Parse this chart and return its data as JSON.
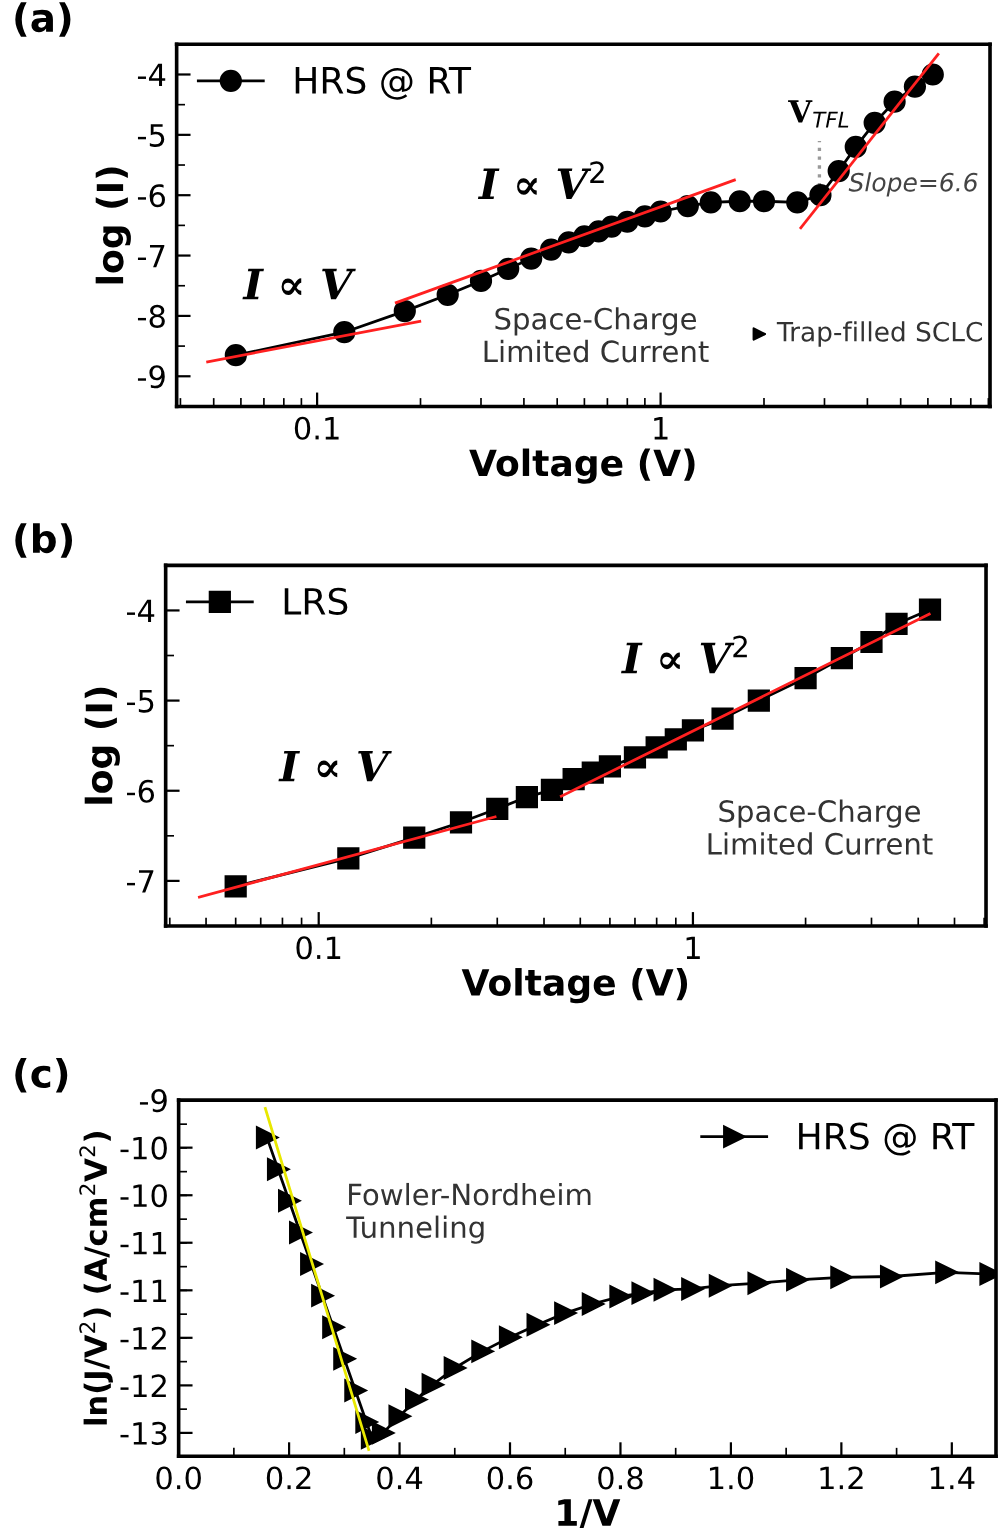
{
  "chart_data": [
    {
      "type": "line",
      "title": "(a)",
      "xlabel": "Voltage (V)",
      "ylabel": "log (I)",
      "log": "x",
      "grid": false,
      "legend": "top left",
      "xlim": [
        0.039,
        9.1
      ],
      "xticks": [
        0.1,
        1
      ],
      "ylim": [
        -9.5,
        -3.5
      ],
      "yticks": [
        -9,
        -8,
        -7,
        -6,
        -5,
        -4
      ],
      "series": [
        {
          "name": "HRS @ RT",
          "color": "#000000",
          "marker": "circle",
          "line_style": "solid",
          "x": [
            0.058,
            0.12,
            0.18,
            0.24,
            0.3,
            0.36,
            0.42,
            0.48,
            0.54,
            0.6,
            0.66,
            0.72,
            0.8,
            0.9,
            1.0,
            1.2,
            1.4,
            1.7,
            2.0,
            2.5,
            2.92,
            3.3,
            3.7,
            4.2,
            4.8,
            5.5,
            6.2
          ],
          "values": [
            -8.65,
            -8.27,
            -7.92,
            -7.65,
            -7.42,
            -7.22,
            -7.05,
            -6.9,
            -6.78,
            -6.68,
            -6.6,
            -6.52,
            -6.44,
            -6.35,
            -6.27,
            -6.18,
            -6.12,
            -6.1,
            -6.1,
            -6.12,
            -6.0,
            -5.6,
            -5.2,
            -4.8,
            -4.45,
            -4.2,
            -4.0
          ]
        },
        {
          "type": "line",
          "color": "#ff2020",
          "marker": "none",
          "line_style": "solid",
          "x": [
            0.048,
            0.199
          ],
          "values": [
            -8.76,
            -8.09
          ]
        },
        {
          "type": "line",
          "color": "#ff2020",
          "marker": "none",
          "line_style": "solid",
          "x": [
            0.17,
            1.64
          ],
          "values": [
            -7.78,
            -5.75
          ]
        },
        {
          "type": "line",
          "color": "#ff2020",
          "marker": "none",
          "line_style": "solid",
          "x": [
            2.56,
            6.42
          ],
          "values": [
            -6.54,
            -3.67
          ]
        }
      ],
      "ref_lines": [
        {
          "axis": "x",
          "value": 2.9,
          "label": "V$_{TFL}$",
          "color": "#999999",
          "line_style": "dotted"
        }
      ],
      "annotations": [
        "I ∝ V",
        "I ∝ V$^{2}$",
        "Slope=6.6",
        "Space-Charge\nLimited Current",
        "Trap-filled SCLC"
      ]
    },
    {
      "type": "line",
      "title": "(b)",
      "xlabel": "Voltage (V)",
      "ylabel": "log (I)",
      "log": "x",
      "grid": false,
      "legend": "top left",
      "xlim": [
        0.039,
        6.07
      ],
      "xticks": [
        0.1,
        1
      ],
      "ylim": [
        -7.5,
        -3.5
      ],
      "yticks": [
        -7,
        -6,
        -5,
        -4
      ],
      "series": [
        {
          "name": "LRS",
          "color": "#000000",
          "marker": "square",
          "line_style": "solid",
          "x": [
            0.06,
            0.12,
            0.18,
            0.24,
            0.3,
            0.36,
            0.42,
            0.48,
            0.54,
            0.6,
            0.7,
            0.8,
            0.9,
            1.0,
            1.2,
            1.5,
            2.0,
            2.5,
            3.0,
            3.5,
            4.3
          ],
          "values": [
            -7.06,
            -6.75,
            -6.52,
            -6.35,
            -6.2,
            -6.07,
            -5.99,
            -5.87,
            -5.8,
            -5.73,
            -5.63,
            -5.52,
            -5.43,
            -5.33,
            -5.2,
            -5.0,
            -4.75,
            -4.53,
            -4.35,
            -4.15,
            -3.99
          ]
        },
        {
          "type": "line",
          "color": "#ff2020",
          "marker": "none",
          "line_style": "solid",
          "x": [
            0.048,
            0.296
          ],
          "values": [
            -7.18,
            -6.29
          ]
        },
        {
          "type": "line",
          "color": "#ff2020",
          "marker": "none",
          "line_style": "solid",
          "x": [
            0.445,
            4.28
          ],
          "values": [
            -6.06,
            -4.04
          ]
        }
      ],
      "annotations": [
        "I ∝ V",
        "I ∝ V$^{2}$",
        "Space-Charge\nLimited Current"
      ]
    },
    {
      "type": "line",
      "title": "(c)",
      "xlabel": "1/V",
      "ylabel": "ln(J/V$^{2}$) (A/cm$^{2}$V$^{2}$)",
      "grid": false,
      "legend": "top right",
      "xlim": [
        0,
        1.48
      ],
      "xticks": [
        {
          "value": 0,
          "label": "0.0"
        },
        0.2,
        0.4,
        0.6,
        0.8,
        {
          "value": 1,
          "label": "1.0"
        },
        1.2,
        1.4
      ],
      "ylim": [
        -13.28,
        -9
      ],
      "yticks": [
        -9,
        {
          "value": -9.571,
          "label": "-10"
        },
        {
          "value": -10.143,
          "label": "-10"
        },
        {
          "value": -10.714,
          "label": "-11"
        },
        {
          "value": -11.286,
          "label": "-11"
        },
        {
          "value": -11.857,
          "label": "-12"
        },
        {
          "value": -12.429,
          "label": "-12"
        },
        -13
      ],
      "series": [
        {
          "name": "HRS @ RT",
          "color": "#000000",
          "marker": "triangle",
          "line_style": "solid",
          "x": [
            0.16,
            0.18,
            0.2,
            0.22,
            0.24,
            0.26,
            0.28,
            0.3,
            0.32,
            0.34,
            0.35,
            0.37,
            0.4,
            0.43,
            0.46,
            0.5,
            0.55,
            0.6,
            0.65,
            0.7,
            0.75,
            0.8,
            0.84,
            0.88,
            0.93,
            0.98,
            1.05,
            1.12,
            1.2,
            1.29,
            1.39,
            1.47
          ],
          "values": [
            -9.45,
            -9.83,
            -10.21,
            -10.59,
            -10.97,
            -11.35,
            -11.73,
            -12.11,
            -12.49,
            -12.87,
            -13.06,
            -13.0,
            -12.8,
            -12.6,
            -12.42,
            -12.22,
            -12.02,
            -11.85,
            -11.7,
            -11.56,
            -11.45,
            -11.36,
            -11.32,
            -11.28,
            -11.27,
            -11.23,
            -11.2,
            -11.16,
            -11.13,
            -11.12,
            -11.07,
            -11.09
          ]
        },
        {
          "type": "line",
          "color": "#e8e800",
          "marker": "none",
          "line_style": "solid",
          "x": [
            0.157,
            0.344
          ],
          "values": [
            -9.1,
            -13.2
          ]
        }
      ],
      "annotations": [
        "Fowler-Nordheim\nTunneling"
      ]
    }
  ]
}
